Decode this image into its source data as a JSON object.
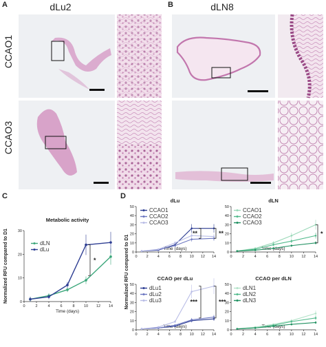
{
  "figure": {
    "panels": {
      "A": {
        "letter": "A",
        "header": "dLu2",
        "rows": [
          "CCAO1",
          "CCAO3"
        ]
      },
      "B": {
        "letter": "B",
        "header": "dLN8"
      },
      "C": {
        "letter": "C"
      },
      "D": {
        "letter": "D"
      }
    },
    "colors": {
      "dLN": "#3aa67a",
      "dLu": "#2d3d92",
      "CCAO1": "#2d3d92",
      "CCAO2": "#6a75c0",
      "CCAO3": "#b9bde6",
      "dLN_CCAO1": "#9ad8b8",
      "dLN_CCAO2": "#52ba8c",
      "dLN_CCAO3": "#1f9060",
      "dLu1": "#2d3d92",
      "dLu2": "#6a75c0",
      "dLu3": "#b9bde6",
      "dLN1": "#b3e3c9",
      "dLN2": "#52ba8c",
      "dLN3": "#1f9060",
      "tissue": "#c77ab0"
    }
  },
  "chart_data": [
    {
      "id": "C",
      "type": "line",
      "title": "Metabolic activity",
      "xlabel": "Time (days)",
      "ylabel": "Normalized RFU compared to D1",
      "xlim": [
        0,
        14
      ],
      "ylim": [
        0,
        30
      ],
      "xticks": [
        "0",
        "2",
        "4",
        "6",
        "8",
        "10",
        "12",
        "14"
      ],
      "yticks": [
        "0",
        "10",
        "20",
        "30"
      ],
      "legend": "top-left",
      "series": [
        {
          "name": "dLN",
          "x": [
            1,
            4,
            7,
            10,
            14
          ],
          "y": [
            1,
            2.5,
            5,
            9,
            19
          ]
        },
        {
          "name": "dLu",
          "x": [
            1,
            4,
            7,
            10,
            14
          ],
          "y": [
            1,
            2,
            7,
            24,
            25
          ]
        }
      ],
      "significance": [
        {
          "label": "*"
        }
      ]
    },
    {
      "id": "D1",
      "type": "line",
      "title": "dLu",
      "xlabel": "Time (days)",
      "ylabel": "",
      "xlim": [
        0,
        14
      ],
      "ylim": [
        0,
        50
      ],
      "xticks": [
        "0",
        "2",
        "4",
        "6",
        "8",
        "10",
        "12",
        "14"
      ],
      "yticks": [
        "0",
        "10",
        "20",
        "30",
        "40",
        "50"
      ],
      "legend": "top-left",
      "series": [
        {
          "name": "CCAO1",
          "x": [
            1,
            4,
            7,
            10,
            14
          ],
          "y": [
            1,
            2,
            8,
            26,
            26
          ]
        },
        {
          "name": "CCAO2",
          "x": [
            1,
            4,
            7,
            10,
            14
          ],
          "y": [
            1,
            2.5,
            7,
            14,
            15
          ]
        },
        {
          "name": "CCAO3",
          "x": [
            1,
            4,
            7,
            10,
            14
          ],
          "y": [
            1,
            3,
            10,
            18,
            17
          ]
        }
      ],
      "significance": [
        {
          "label": "**"
        },
        {
          "label": "**"
        }
      ]
    },
    {
      "id": "D2",
      "type": "line",
      "title": "dLN",
      "xlabel": "Time (days)",
      "ylabel": "",
      "xlim": [
        0,
        14
      ],
      "ylim": [
        0,
        50
      ],
      "xticks": [
        "0",
        "2",
        "4",
        "6",
        "8",
        "10",
        "12",
        "14"
      ],
      "yticks": [
        "0",
        "10",
        "20",
        "30",
        "40",
        "50"
      ],
      "legend": "top-left",
      "series": [
        {
          "name": "CCAO1",
          "x": [
            1,
            4,
            7,
            10,
            14
          ],
          "y": [
            1,
            4,
            10,
            18,
            30
          ]
        },
        {
          "name": "CCAO2",
          "x": [
            1,
            4,
            7,
            10,
            14
          ],
          "y": [
            1,
            3,
            8,
            12,
            18
          ]
        },
        {
          "name": "CCAO3",
          "x": [
            1,
            4,
            7,
            10,
            14
          ],
          "y": [
            1,
            2,
            4,
            7,
            10
          ]
        }
      ],
      "significance": [
        {
          "label": "*"
        }
      ]
    },
    {
      "id": "D3",
      "type": "line",
      "title": "CCAO per dLu",
      "xlabel": "Time (days)",
      "ylabel": "",
      "xlim": [
        0,
        14
      ],
      "ylim": [
        0,
        50
      ],
      "xticks": [
        "0",
        "2",
        "4",
        "6",
        "8",
        "10",
        "12",
        "14"
      ],
      "yticks": [
        "0",
        "10",
        "20",
        "30",
        "40",
        "50"
      ],
      "legend": "top-left",
      "series": [
        {
          "name": "dLu1",
          "x": [
            1,
            4,
            7,
            10,
            14
          ],
          "y": [
            1,
            2,
            4,
            10,
            12
          ]
        },
        {
          "name": "dLu2",
          "x": [
            1,
            4,
            7,
            10,
            14
          ],
          "y": [
            1,
            2,
            5,
            11,
            14
          ]
        },
        {
          "name": "dLu3",
          "x": [
            1,
            4,
            7,
            10,
            14
          ],
          "y": [
            1,
            3,
            9,
            42,
            48
          ]
        }
      ],
      "significance": [
        {
          "label": "***"
        },
        {
          "label": "***"
        }
      ]
    },
    {
      "id": "D4",
      "type": "line",
      "title": "CCAO per dLN",
      "xlabel": "Time (days)",
      "ylabel": "",
      "xlim": [
        0,
        14
      ],
      "ylim": [
        0,
        50
      ],
      "xticks": [
        "0",
        "2",
        "4",
        "6",
        "8",
        "10",
        "12",
        "14"
      ],
      "yticks": [
        "0",
        "10",
        "20",
        "30",
        "40",
        "50"
      ],
      "legend": "top-left",
      "series": [
        {
          "name": "dLN1",
          "x": [
            1,
            4,
            7,
            10,
            14
          ],
          "y": [
            1,
            3,
            6,
            10,
            18
          ]
        },
        {
          "name": "dLN2",
          "x": [
            1,
            4,
            7,
            10,
            14
          ],
          "y": [
            1,
            2,
            5,
            9,
            13
          ]
        },
        {
          "name": "dLN3",
          "x": [
            1,
            4,
            7,
            10,
            14
          ],
          "y": [
            1,
            2,
            4,
            6,
            8
          ]
        }
      ]
    }
  ],
  "shared": {
    "ylabel_D": "Normalized RFU compared to D1"
  }
}
